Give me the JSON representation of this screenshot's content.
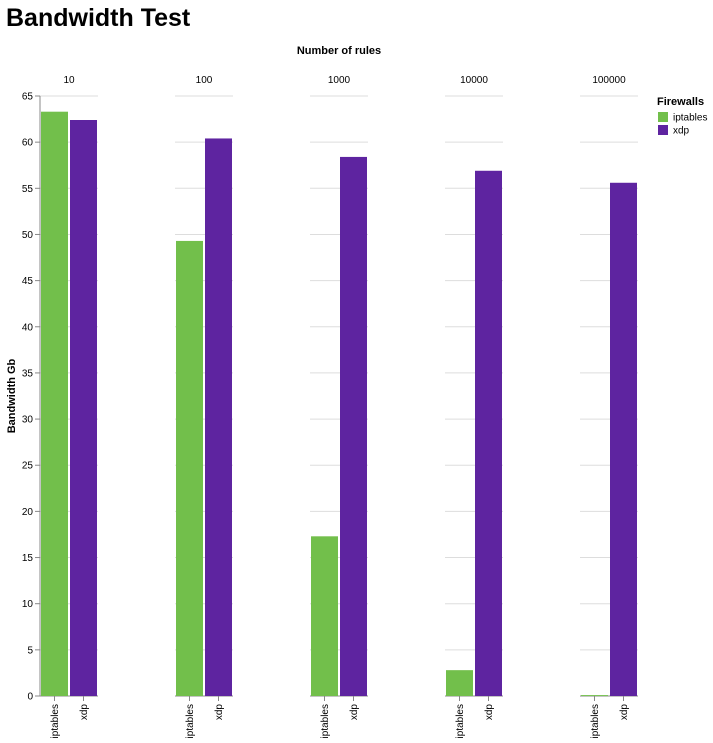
{
  "chart_data": {
    "type": "bar",
    "title": "Bandwidth Test",
    "facet_title": "Number of rules",
    "categories": [
      "10",
      "100",
      "1000",
      "10000",
      "100000"
    ],
    "series": [
      {
        "name": "iptables",
        "color": "#72bf4b",
        "values": [
          63.3,
          49.3,
          17.3,
          2.8,
          0.1
        ]
      },
      {
        "name": "xdp",
        "color": "#5e24a0",
        "values": [
          62.4,
          60.4,
          58.4,
          56.9,
          55.6
        ]
      }
    ],
    "y_label": "Bandwidth Gb",
    "legend_title": "Firewalls",
    "legend_position": "right",
    "ylim": [
      0,
      65
    ],
    "yticks": [
      0,
      5,
      10,
      15,
      20,
      25,
      30,
      35,
      40,
      45,
      50,
      55,
      60,
      65
    ],
    "grid": true
  }
}
